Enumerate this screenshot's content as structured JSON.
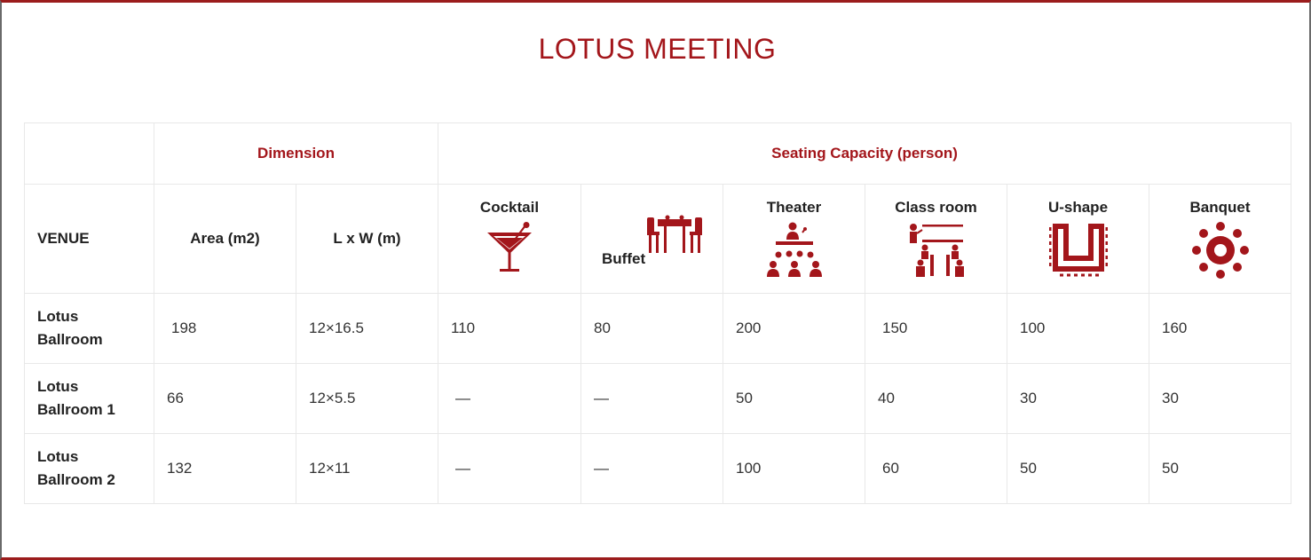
{
  "title": "LOTUS MEETING",
  "colors": {
    "accent": "#a3161b"
  },
  "groups": {
    "dimension": "Dimension",
    "seating": "Seating Capacity (person)"
  },
  "columns": {
    "venue": "VENUE",
    "area": "Area (m2)",
    "lxw": "L x W (m)",
    "cocktail": "Cocktail",
    "buffet": "Buffet",
    "theater": "Theater",
    "classroom": "Class room",
    "ushape": "U-shape",
    "banquet": "Banquet"
  },
  "icons": {
    "cocktail": "cocktail-glass-icon",
    "buffet": "buffet-table-icon",
    "theater": "theater-seating-icon",
    "classroom": "classroom-seating-icon",
    "ushape": "u-shape-seating-icon",
    "banquet": "banquet-round-table-icon"
  },
  "rows": [
    {
      "name": "Lotus Ballroom",
      "name_line1": "Lotus",
      "name_line2": "Ballroom",
      "area": "198",
      "lxw": "12×16.5",
      "cocktail": "110",
      "buffet": "80",
      "theater": "200",
      "classroom": "150",
      "ushape": "100",
      "banquet": "160"
    },
    {
      "name": "Lotus Ballroom 1",
      "name_line1": "Lotus",
      "name_line2": "Ballroom 1",
      "area": "66",
      "lxw": "12×5.5",
      "cocktail": "—",
      "buffet": "—",
      "theater": "50",
      "classroom": "40",
      "ushape": "30",
      "banquet": "30"
    },
    {
      "name": "Lotus Ballroom 2",
      "name_line1": "Lotus",
      "name_line2": "Ballroom 2",
      "area": "132",
      "lxw": "12×11",
      "cocktail": "—",
      "buffet": "—",
      "theater": "100",
      "classroom": "60",
      "ushape": "50",
      "banquet": "50"
    }
  ]
}
